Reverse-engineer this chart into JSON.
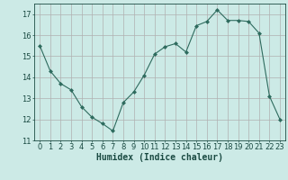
{
  "x": [
    0,
    1,
    2,
    3,
    4,
    5,
    6,
    7,
    8,
    9,
    10,
    11,
    12,
    13,
    14,
    15,
    16,
    17,
    18,
    19,
    20,
    21,
    22,
    23
  ],
  "y": [
    15.5,
    14.3,
    13.7,
    13.4,
    12.6,
    12.1,
    11.8,
    11.45,
    12.8,
    13.3,
    14.1,
    15.1,
    15.45,
    15.6,
    15.2,
    16.45,
    16.65,
    17.2,
    16.7,
    16.7,
    16.65,
    16.1,
    13.1,
    12.0
  ],
  "line_color": "#2e6b5e",
  "marker": "D",
  "marker_size": 2,
  "bg_color": "#cceae6",
  "grid_color_major": "#b0b0b0",
  "grid_color_minor": "#d8d8d8",
  "xlabel": "Humidex (Indice chaleur)",
  "ylim": [
    11,
    17.5
  ],
  "xlim": [
    -0.5,
    23.5
  ],
  "yticks": [
    11,
    12,
    13,
    14,
    15,
    16,
    17
  ],
  "xticks": [
    0,
    1,
    2,
    3,
    4,
    5,
    6,
    7,
    8,
    9,
    10,
    11,
    12,
    13,
    14,
    15,
    16,
    17,
    18,
    19,
    20,
    21,
    22,
    23
  ],
  "font_color": "#1a4a42",
  "tick_fontsize": 6,
  "xlabel_fontsize": 7
}
